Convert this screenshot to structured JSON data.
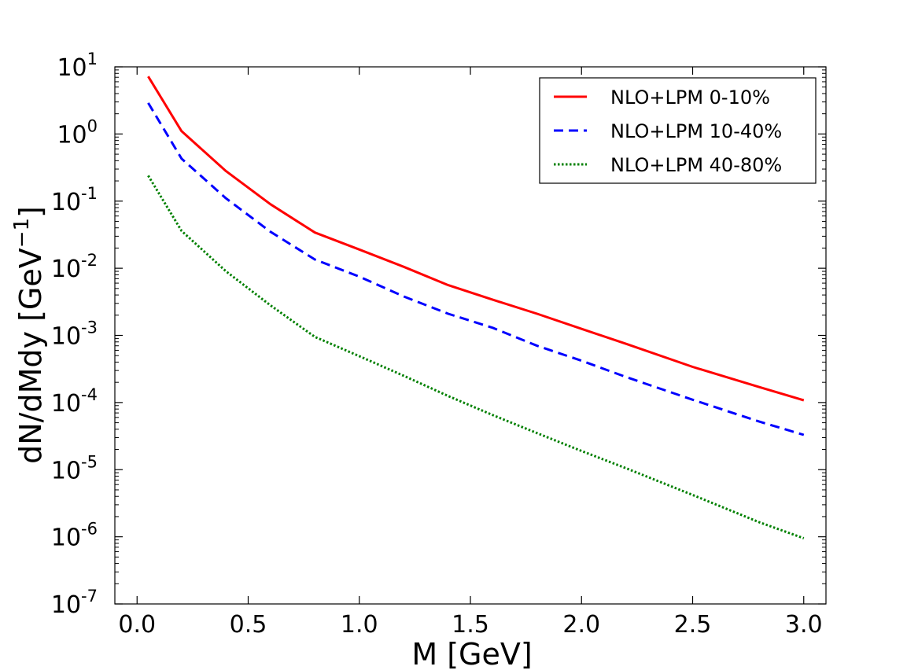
{
  "chart_data": {
    "type": "line",
    "xlabel": "M [GeV]",
    "ylabel_main": "dN/dMdy [GeV",
    "ylabel_sup": "−1",
    "ylabel_end": "]",
    "xlim": [
      -0.1,
      3.1
    ],
    "ylim": [
      1e-07,
      10
    ],
    "yscale": "log",
    "grid": false,
    "legend_position": "top-right",
    "xticks": [
      {
        "value": 0.0,
        "label": "0.0"
      },
      {
        "value": 0.5,
        "label": "0.5"
      },
      {
        "value": 1.0,
        "label": "1.0"
      },
      {
        "value": 1.5,
        "label": "1.5"
      },
      {
        "value": 2.0,
        "label": "2.0"
      },
      {
        "value": 2.5,
        "label": "2.5"
      },
      {
        "value": 3.0,
        "label": "3.0"
      }
    ],
    "yticks": [
      {
        "value": 10,
        "base": "10",
        "exp": "1"
      },
      {
        "value": 1,
        "base": "10",
        "exp": "0"
      },
      {
        "value": 0.1,
        "base": "10",
        "exp": "-1"
      },
      {
        "value": 0.01,
        "base": "10",
        "exp": "-2"
      },
      {
        "value": 0.001,
        "base": "10",
        "exp": "-3"
      },
      {
        "value": 0.0001,
        "base": "10",
        "exp": "-4"
      },
      {
        "value": 1e-05,
        "base": "10",
        "exp": "-5"
      },
      {
        "value": 1e-06,
        "base": "10",
        "exp": "-6"
      },
      {
        "value": 1e-07,
        "base": "10",
        "exp": "-7"
      }
    ],
    "series": [
      {
        "name": "NLO+LPM 0-10%",
        "color": "#ff0000",
        "style": "solid",
        "x": [
          0.05,
          0.2,
          0.4,
          0.6,
          0.8,
          1.0,
          1.2,
          1.4,
          1.6,
          1.8,
          2.0,
          2.2,
          2.5,
          2.8,
          3.0
        ],
        "y": [
          7.2,
          1.1,
          0.28,
          0.09,
          0.034,
          0.019,
          0.0105,
          0.0056,
          0.0034,
          0.0021,
          0.00125,
          0.00075,
          0.00034,
          0.00017,
          0.000108
        ]
      },
      {
        "name": "NLO+LPM 10-40%",
        "color": "#0000ff",
        "style": "dashed",
        "x": [
          0.05,
          0.2,
          0.4,
          0.6,
          0.8,
          1.0,
          1.2,
          1.4,
          1.6,
          1.8,
          2.0,
          2.2,
          2.5,
          2.8,
          3.0
        ],
        "y": [
          2.9,
          0.43,
          0.11,
          0.035,
          0.0135,
          0.0075,
          0.0038,
          0.0021,
          0.0013,
          0.0007,
          0.00042,
          0.00024,
          0.00011,
          5.2e-05,
          3.3e-05
        ]
      },
      {
        "name": "NLO+LPM 40-80%",
        "color": "#008000",
        "style": "dotted",
        "x": [
          0.05,
          0.2,
          0.4,
          0.6,
          0.8,
          1.0,
          1.2,
          1.4,
          1.6,
          1.8,
          2.0,
          2.2,
          2.5,
          2.8,
          3.0
        ],
        "y": [
          0.24,
          0.036,
          0.009,
          0.0028,
          0.00095,
          0.00049,
          0.00025,
          0.000125,
          6.5e-05,
          3.5e-05,
          1.9e-05,
          1.05e-05,
          4.2e-06,
          1.65e-06,
          9.5e-07
        ]
      }
    ]
  }
}
